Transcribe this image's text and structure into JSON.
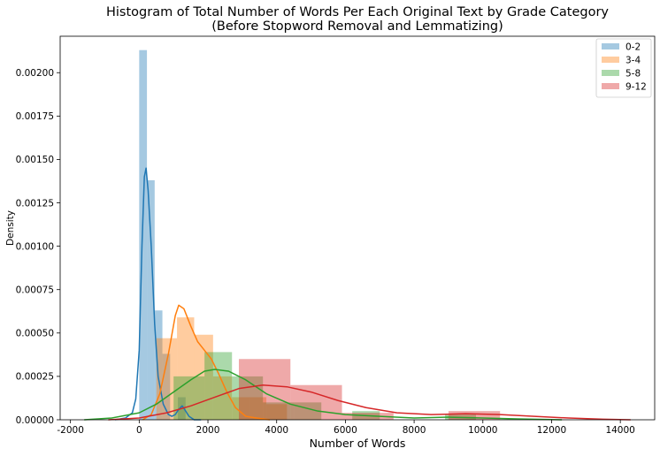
{
  "chart_data": {
    "type": "bar",
    "title": "Histogram of Total Number of Words Per Each Original Text by Grade Category",
    "subtitle": "(Before Stopword Removal and Lemmatizing)",
    "xlabel": "Number of Words",
    "ylabel": "Density",
    "xlim": [
      -2300,
      15000
    ],
    "ylim": [
      0,
      0.00221
    ],
    "xticks": [
      -2000,
      0,
      2000,
      4000,
      6000,
      8000,
      10000,
      12000,
      14000
    ],
    "yticks": [
      0.0,
      0.00025,
      0.0005,
      0.00075,
      0.001,
      0.00125,
      0.0015,
      0.00175,
      0.002
    ],
    "ytick_labels": [
      "0.00000",
      "0.00025",
      "0.00050",
      "0.00075",
      "0.00100",
      "0.00125",
      "0.00150",
      "0.00175",
      "0.00200"
    ],
    "grid": false,
    "legend_position": "top-right",
    "series": [
      {
        "name": "0-2",
        "color": "#1f77b4",
        "bins": [
          [
            0,
            225,
            0.00213
          ],
          [
            225,
            450,
            0.00138
          ],
          [
            450,
            675,
            0.00063
          ],
          [
            675,
            900,
            0.00038
          ],
          [
            900,
            1125,
            0.0
          ],
          [
            1125,
            1350,
            0.00013
          ]
        ],
        "kde": [
          [
            -700,
            0.0
          ],
          [
            -400,
            1e-05
          ],
          [
            -200,
            4e-05
          ],
          [
            -100,
            0.00012
          ],
          [
            0,
            0.0004
          ],
          [
            80,
            0.001
          ],
          [
            150,
            0.0014
          ],
          [
            200,
            0.00145
          ],
          [
            260,
            0.00132
          ],
          [
            350,
            0.001
          ],
          [
            450,
            0.00055
          ],
          [
            550,
            0.00025
          ],
          [
            700,
            9e-05
          ],
          [
            850,
            3e-05
          ],
          [
            950,
            2e-05
          ],
          [
            1050,
            3e-05
          ],
          [
            1150,
            6e-05
          ],
          [
            1250,
            8e-05
          ],
          [
            1320,
            6e-05
          ],
          [
            1450,
            2e-05
          ],
          [
            1600,
            0.0
          ],
          [
            1800,
            0.0
          ]
        ]
      },
      {
        "name": "3-4",
        "color": "#ff7f0e",
        "bins": [
          [
            500,
            1100,
            0.00047
          ],
          [
            1100,
            1600,
            0.00059
          ],
          [
            1600,
            2150,
            0.00049
          ],
          [
            2150,
            2700,
            0.00025
          ],
          [
            2700,
            3200,
            0.00013
          ],
          [
            3200,
            3700,
            0.00013
          ],
          [
            3700,
            4300,
            9e-05
          ]
        ],
        "kde": [
          [
            100,
            0.0
          ],
          [
            350,
            3e-05
          ],
          [
            600,
            0.00015
          ],
          [
            850,
            0.00038
          ],
          [
            1050,
            0.0006
          ],
          [
            1150,
            0.00066
          ],
          [
            1300,
            0.00064
          ],
          [
            1500,
            0.00054
          ],
          [
            1700,
            0.00045
          ],
          [
            1900,
            0.0004
          ],
          [
            2100,
            0.00035
          ],
          [
            2300,
            0.00027
          ],
          [
            2550,
            0.00016
          ],
          [
            2800,
            7e-05
          ],
          [
            3100,
            2e-05
          ],
          [
            3400,
            1e-05
          ],
          [
            3800,
            0.0
          ]
        ]
      },
      {
        "name": "5-8",
        "color": "#2ca02c",
        "bins": [
          [
            1000,
            1900,
            0.00025
          ],
          [
            1900,
            2700,
            0.00039
          ],
          [
            2700,
            3600,
            0.00025
          ],
          [
            3600,
            4500,
            0.0001
          ],
          [
            4500,
            5300,
            0.0001
          ],
          [
            6200,
            7000,
            5e-05
          ],
          [
            8900,
            9800,
            3e-05
          ]
        ],
        "kde": [
          [
            -1600,
            0.0
          ],
          [
            -800,
            1e-05
          ],
          [
            0,
            4e-05
          ],
          [
            500,
            9e-05
          ],
          [
            1000,
            0.00016
          ],
          [
            1500,
            0.00023
          ],
          [
            1900,
            0.00028
          ],
          [
            2200,
            0.00029
          ],
          [
            2600,
            0.00028
          ],
          [
            3100,
            0.00023
          ],
          [
            3700,
            0.00015
          ],
          [
            4400,
            9e-05
          ],
          [
            5200,
            5e-05
          ],
          [
            6000,
            3e-05
          ],
          [
            7000,
            2e-05
          ],
          [
            8000,
            1e-05
          ],
          [
            9000,
            1.5e-05
          ],
          [
            10000,
            1e-05
          ],
          [
            11000,
            5e-06
          ],
          [
            12300,
            0.0
          ]
        ]
      },
      {
        "name": "9-12",
        "color": "#d62728",
        "bins": [
          [
            2900,
            4400,
            0.00035
          ],
          [
            4400,
            5900,
            0.0002
          ],
          [
            5900,
            7400,
            4e-05
          ],
          [
            9000,
            10500,
            5e-05
          ]
        ],
        "kde": [
          [
            -900,
            0.0
          ],
          [
            0,
            1e-05
          ],
          [
            800,
            4e-05
          ],
          [
            1500,
            8e-05
          ],
          [
            2200,
            0.00013
          ],
          [
            2900,
            0.00018
          ],
          [
            3600,
            0.0002
          ],
          [
            4300,
            0.00019
          ],
          [
            5000,
            0.00016
          ],
          [
            5800,
            0.00011
          ],
          [
            6600,
            7e-05
          ],
          [
            7500,
            4e-05
          ],
          [
            8500,
            3e-05
          ],
          [
            9500,
            3.5e-05
          ],
          [
            10500,
            3e-05
          ],
          [
            11500,
            2e-05
          ],
          [
            12500,
            1e-05
          ],
          [
            13500,
            3e-06
          ],
          [
            14300,
            0.0
          ]
        ]
      }
    ]
  }
}
